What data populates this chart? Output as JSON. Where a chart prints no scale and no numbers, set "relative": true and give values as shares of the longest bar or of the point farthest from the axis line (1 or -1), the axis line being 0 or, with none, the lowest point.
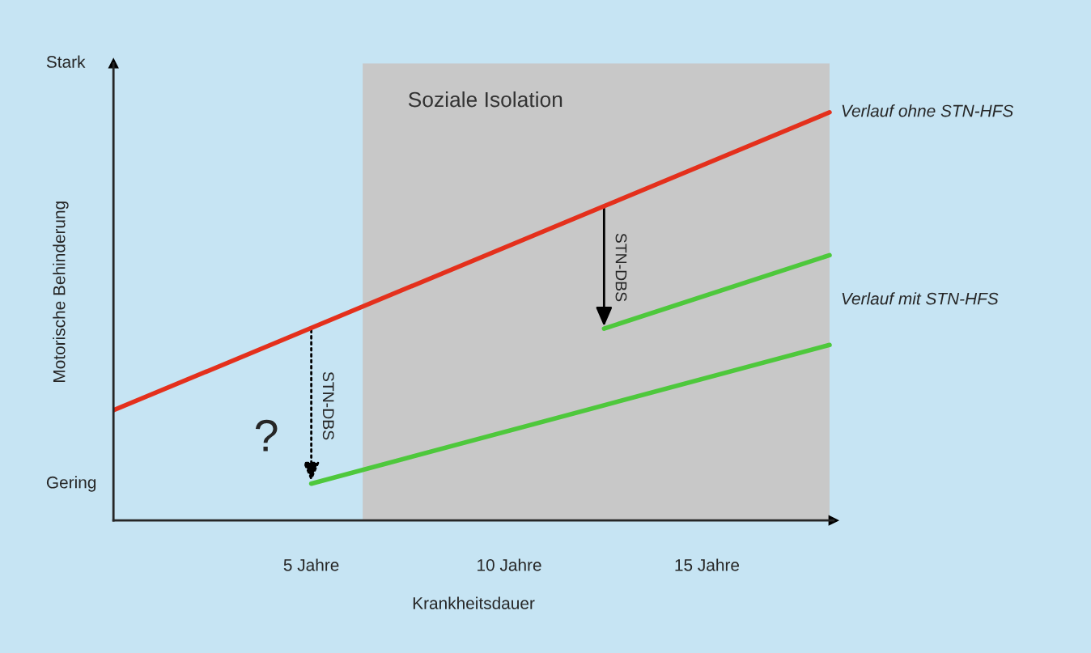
{
  "chart_data": {
    "type": "line",
    "relative": true,
    "xlabel": "Krankheitsdauer",
    "ylabel": "Motorische Behinderung",
    "xlim": [
      0,
      18.2
    ],
    "xticks": [
      {
        "value": 5,
        "label": "5 Jahre"
      },
      {
        "value": 10,
        "label": "10 Jahre"
      },
      {
        "value": 15,
        "label": "15 Jahre"
      }
    ],
    "series": [
      {
        "name": "Verlauf ohne STN-HFS",
        "color": "#e4301c",
        "x": [
          0,
          18.1
        ],
        "values": [
          0.27,
          1
        ]
      },
      {
        "color": "#4ec83c",
        "x": [
          5,
          18.1
        ],
        "values": [
          0.09,
          0.43
        ]
      },
      {
        "name": "Verlauf mit STN-HFS",
        "color": "#4ec83c",
        "x": [
          12.4,
          18.1
        ],
        "values": [
          0.47,
          0.65
        ]
      }
    ],
    "bands": [
      {
        "axis": "x",
        "from": 6.3,
        "to": 18.1,
        "label": "Soziale Isolation",
        "color": "#c8c8c8"
      }
    ],
    "annotations": [
      "Stark",
      "Gering",
      "STN-DBS",
      "STN-DBS",
      "?"
    ],
    "grid": false,
    "legend": false,
    "marker": "none"
  }
}
